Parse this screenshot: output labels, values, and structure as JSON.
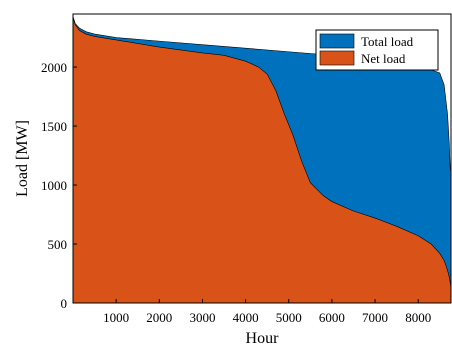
{
  "chart_data": {
    "type": "area",
    "title": "",
    "xlabel": "Hour",
    "ylabel": "Load [MW]",
    "xlim": [
      0,
      8760
    ],
    "ylim": [
      0,
      2450
    ],
    "xticks": [
      1000,
      2000,
      3000,
      4000,
      5000,
      6000,
      7000,
      8000
    ],
    "yticks": [
      0,
      500,
      1000,
      1500,
      2000
    ],
    "grid": false,
    "legend_position": "top-right",
    "series": [
      {
        "name": "Total load",
        "color": "#0072bd",
        "x": [
          0,
          50,
          150,
          300,
          500,
          1000,
          2000,
          3000,
          4000,
          5000,
          6000,
          7000,
          7800,
          8200,
          8500,
          8600,
          8680,
          8720,
          8740,
          8760
        ],
        "y": [
          2430,
          2370,
          2330,
          2300,
          2280,
          2250,
          2220,
          2190,
          2160,
          2130,
          2100,
          2060,
          2020,
          1990,
          1950,
          1850,
          1600,
          1350,
          1150,
          1100
        ]
      },
      {
        "name": "Net load",
        "color": "#d95319",
        "x": [
          0,
          50,
          150,
          300,
          500,
          1000,
          2000,
          3000,
          3500,
          4000,
          4300,
          4500,
          4700,
          4900,
          5100,
          5300,
          5500,
          5800,
          6000,
          6500,
          7000,
          7500,
          8000,
          8300,
          8500,
          8600,
          8650,
          8700,
          8730,
          8760
        ],
        "y": [
          2420,
          2360,
          2310,
          2280,
          2260,
          2230,
          2170,
          2120,
          2100,
          2050,
          2000,
          1940,
          1800,
          1600,
          1420,
          1200,
          1020,
          910,
          860,
          780,
          720,
          650,
          570,
          500,
          420,
          360,
          310,
          250,
          200,
          130
        ]
      }
    ]
  }
}
